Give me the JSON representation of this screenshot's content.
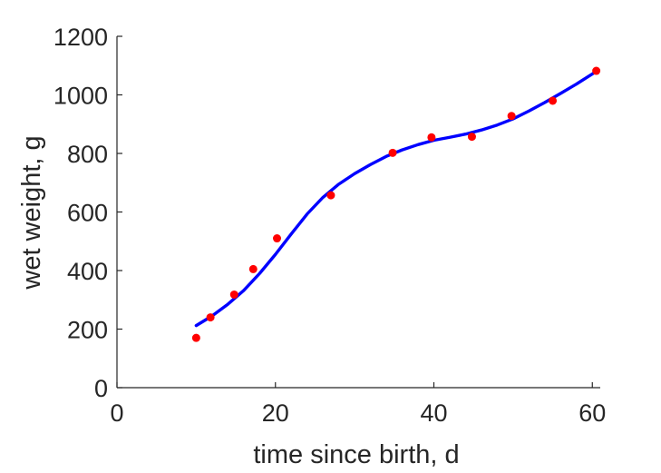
{
  "chart_data": {
    "type": "scatter",
    "xlabel": "time since birth, d",
    "ylabel": "wet weight, g",
    "xlim": [
      0,
      61
    ],
    "ylim": [
      0,
      1200
    ],
    "xticks": [
      0,
      20,
      40,
      60
    ],
    "yticks": [
      0,
      200,
      400,
      600,
      800,
      1000,
      1200
    ],
    "grid": false,
    "box": false,
    "series": [
      {
        "kind": "points",
        "color": "#ff0000",
        "x": [
          10,
          11.8,
          14.8,
          17.2,
          20.2,
          27,
          34.8,
          39.7,
          44.8,
          49.8,
          55,
          60.5
        ],
        "y": [
          170,
          240,
          318,
          405,
          510,
          657,
          802,
          855,
          857,
          928,
          980,
          1082
        ]
      },
      {
        "kind": "line",
        "color": "#0000ff",
        "x": [
          10,
          12,
          14,
          16,
          18,
          20,
          22,
          24,
          26,
          28,
          30,
          32,
          34,
          36,
          38,
          40,
          42,
          44,
          46,
          48,
          50,
          52,
          54,
          56,
          58,
          60.5
        ],
        "y": [
          212,
          245,
          285,
          332,
          390,
          455,
          525,
          593,
          650,
          695,
          731,
          762,
          790,
          812,
          830,
          845,
          855,
          866,
          880,
          897,
          918,
          945,
          974,
          1005,
          1037,
          1080
        ]
      }
    ]
  }
}
